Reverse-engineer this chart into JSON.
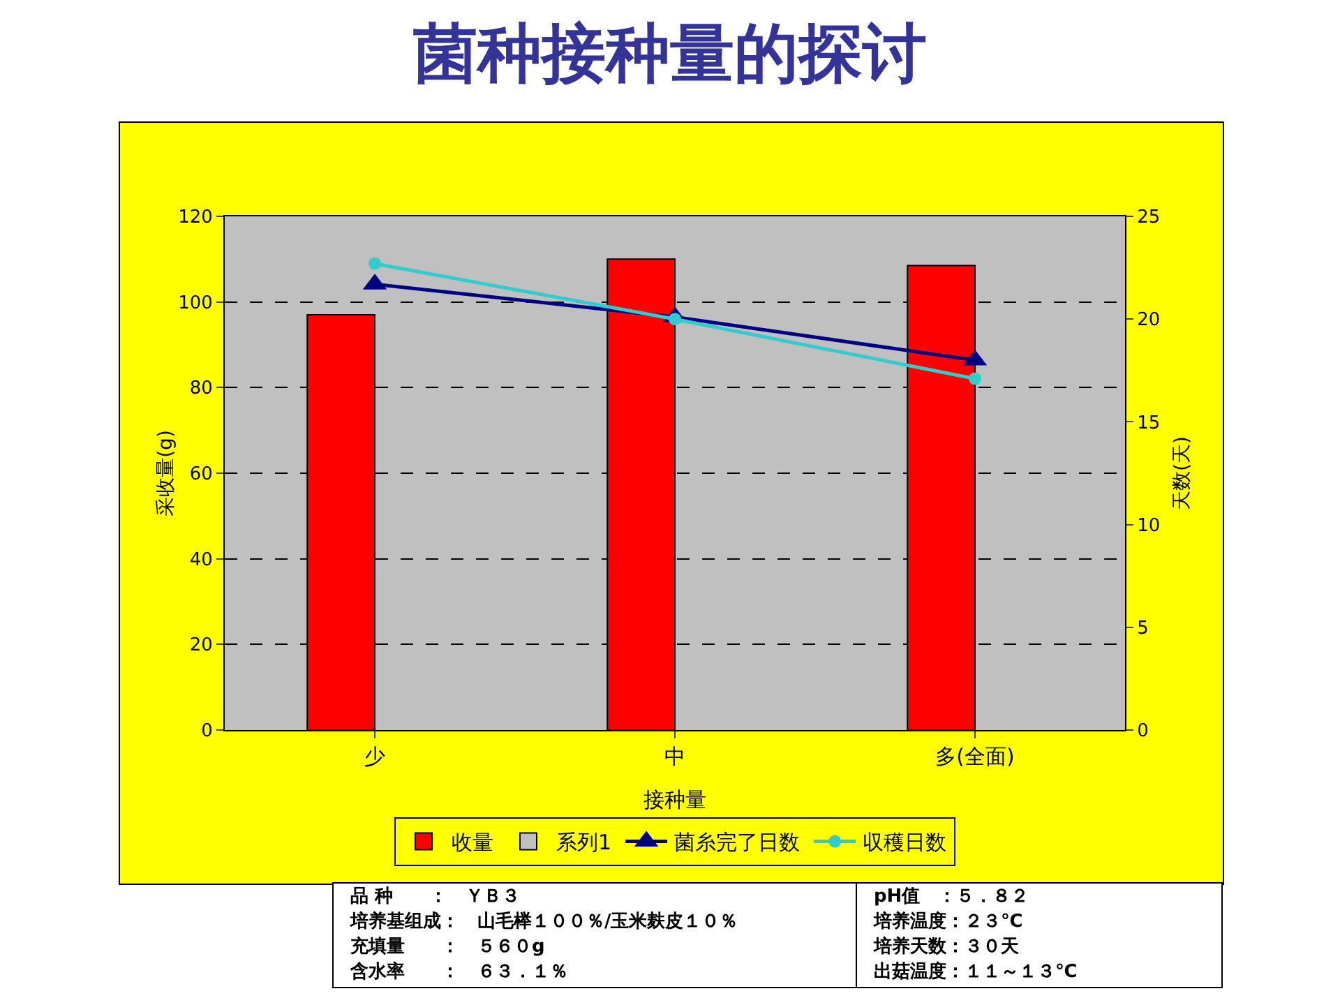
{
  "chart_data": {
    "type": "bar",
    "title": "菌种接种量的探讨",
    "xlabel": "接种量",
    "ylabel": "采收量(g)",
    "y2label": "天数(天)",
    "categories": [
      "少",
      "中",
      "多(全面)"
    ],
    "series": [
      {
        "name": "收量",
        "color": "#ff0000",
        "values": [
          97,
          110,
          108.5
        ]
      },
      {
        "name": "系列1",
        "color": "#c0c0c0",
        "values": [
          null,
          null,
          null
        ]
      },
      {
        "name": "菌糸完了日数",
        "type": "line",
        "axis": "y2",
        "color": "#000080",
        "marker": "triangle",
        "values": [
          21.7,
          20.1,
          18.0
        ]
      },
      {
        "name": "収穫日数",
        "type": "line",
        "axis": "y2",
        "color": "#33cccc",
        "marker": "circle",
        "values": [
          22.7,
          20.0,
          17.1
        ]
      }
    ],
    "ylim": [
      0,
      120
    ],
    "yticks": [
      0,
      20,
      40,
      60,
      80,
      100,
      120
    ],
    "y2lim": [
      0,
      25
    ],
    "y2ticks": [
      0,
      5,
      10,
      15,
      20,
      25
    ],
    "grid": "y",
    "legend": "bottom",
    "annotations": [
      "品 种　　：　ＹＢ３",
      "培养基组成：　山毛榉１００％/玉米麸皮１０％",
      "充填量　　：　５６０g",
      "含水率　　：　６３．１％",
      "pH值　：５．８２",
      "培养温度：２３℃",
      "培养天数：３０天",
      "出菇温度：１１～１３℃"
    ]
  }
}
